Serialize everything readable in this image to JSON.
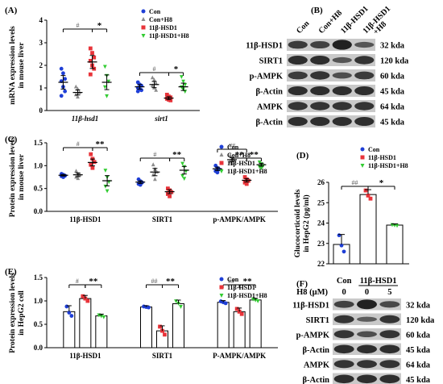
{
  "panel_letters": [
    "(A)",
    "(B)",
    "(C)",
    "(D)",
    "(E)",
    "(F)"
  ],
  "significance": {
    "hash": "#",
    "hash2": "##",
    "star": "*",
    "star2": "**"
  },
  "colors": {
    "con": "#1f3fd6",
    "conh8": "#8c8c8c",
    "hsd1": "#e8343a",
    "hsd1h8": "#33cc33",
    "band_dark": "#1a1a1a",
    "band_mid": "#555555"
  },
  "chart_data": [
    {
      "id": "A",
      "type": "scatter",
      "ylabel": "mRNA expression levels in mouse liver",
      "categories": [
        "11β-hsd1",
        "sirt1"
      ],
      "ylim": [
        0,
        4
      ],
      "yticks": [
        0,
        1,
        2,
        3,
        4
      ],
      "legend": "top-right",
      "series": [
        {
          "name": "Con",
          "color": "con",
          "marker": "circle",
          "means": [
            1.25,
            1.05
          ],
          "points": [
            [
              1.85,
              1.65,
              1.4,
              1.3,
              1.05,
              0.85,
              0.65
            ],
            [
              1.25,
              1.15,
              1.1,
              1.0,
              0.95,
              0.9,
              0.85
            ]
          ]
        },
        {
          "name": "Con+H8",
          "color": "conh8",
          "marker": "triangle",
          "means": [
            0.8,
            1.15
          ],
          "points": [
            [
              1.05,
              0.95,
              0.8,
              0.7,
              0.6
            ],
            [
              1.45,
              1.35,
              1.2,
              1.1,
              1.0,
              0.9
            ]
          ]
        },
        {
          "name": "11β-HSD1",
          "color": "hsd1",
          "marker": "square",
          "means": [
            2.15,
            0.55
          ],
          "points": [
            [
              2.75,
              2.55,
              2.35,
              2.2,
              2.0,
              1.85,
              1.6
            ],
            [
              0.7,
              0.62,
              0.58,
              0.52,
              0.48,
              0.45
            ]
          ]
        },
        {
          "name": "11β-HSD1+H8",
          "color": "hsd1h8",
          "marker": "triangle-down",
          "means": [
            1.25,
            1.05
          ],
          "points": [
            [
              1.95,
              1.55,
              1.3,
              1.05,
              0.65
            ],
            [
              1.5,
              1.3,
              1.15,
              1.05,
              0.95,
              0.85
            ]
          ]
        }
      ],
      "annotations": [
        {
          "group": 0,
          "label": "#",
          "from": 0,
          "to": 2
        },
        {
          "group": 0,
          "label": "*",
          "from": 2,
          "to": 3
        },
        {
          "group": 1,
          "label": "#",
          "from": 0,
          "to": 2
        },
        {
          "group": 1,
          "label": "*",
          "from": 2,
          "to": 3
        }
      ]
    },
    {
      "id": "C",
      "type": "scatter",
      "ylabel": "Protein expression levels in mouse liver",
      "categories": [
        "11β-HSD1",
        "SIRT1",
        "p-AMPK/AMPK"
      ],
      "ylim": [
        0,
        1.5
      ],
      "yticks": [
        0.0,
        0.5,
        1.0,
        1.5
      ],
      "legend": "top-right",
      "series": [
        {
          "name": "Con",
          "color": "con",
          "marker": "circle",
          "means": [
            0.79,
            0.64,
            0.93
          ],
          "points": [
            [
              0.82,
              0.8,
              0.78,
              0.77,
              0.75
            ],
            [
              0.7,
              0.66,
              0.63,
              0.6,
              0.58
            ],
            [
              1.0,
              0.95,
              0.92,
              0.88,
              0.85
            ]
          ]
        },
        {
          "name": "Con+H8",
          "color": "conh8",
          "marker": "triangle",
          "means": [
            0.8,
            0.86,
            1.13
          ],
          "points": [
            [
              0.88,
              0.82,
              0.8,
              0.75,
              0.72
            ],
            [
              1.02,
              0.92,
              0.86,
              0.8,
              0.7
            ],
            [
              1.22,
              1.15,
              1.12,
              1.08,
              1.05
            ]
          ]
        },
        {
          "name": "11β-HSD1",
          "color": "hsd1",
          "marker": "square",
          "means": [
            1.07,
            0.43,
            0.68
          ],
          "points": [
            [
              1.25,
              1.15,
              1.08,
              1.02,
              0.95
            ],
            [
              0.5,
              0.46,
              0.42,
              0.38,
              0.33
            ],
            [
              0.75,
              0.7,
              0.67,
              0.63,
              0.6
            ]
          ]
        },
        {
          "name": "11β-HSD1+H8",
          "color": "hsd1h8",
          "marker": "triangle-down",
          "means": [
            0.67,
            0.9,
            1.02
          ],
          "points": [
            [
              0.9,
              0.75,
              0.65,
              0.55,
              0.45
            ],
            [
              1.05,
              0.98,
              0.88,
              0.78,
              0.72
            ],
            [
              1.08,
              1.04,
              1.0,
              0.98,
              0.95
            ]
          ]
        }
      ],
      "annotations": [
        {
          "group": 0,
          "label": "#",
          "from": 0,
          "to": 2
        },
        {
          "group": 0,
          "label": "**",
          "from": 2,
          "to": 3
        },
        {
          "group": 1,
          "label": "#",
          "from": 0,
          "to": 2
        },
        {
          "group": 1,
          "label": "**",
          "from": 2,
          "to": 3
        },
        {
          "group": 2,
          "label": "##",
          "from": 0,
          "to": 2
        },
        {
          "group": 2,
          "label": "**",
          "from": 1,
          "to": 2
        },
        {
          "group": 2,
          "label": "**",
          "from": 2,
          "to": 3
        }
      ]
    },
    {
      "id": "D",
      "type": "bar",
      "ylabel": "Glucocorticoid levels in HepG2 (pg/ml)",
      "categories": [
        "Con",
        "11β-HSD1",
        "11β-HSD1+H8"
      ],
      "ylim": [
        22,
        26
      ],
      "yticks": [
        22,
        23,
        24,
        25,
        26
      ],
      "values": [
        22.95,
        25.4,
        23.9
      ],
      "points": [
        [
          23.4,
          22.9,
          22.6
        ],
        [
          25.6,
          25.35,
          25.2
        ],
        [
          23.92,
          23.9,
          23.88
        ]
      ],
      "legend": "top-right",
      "annotations": [
        {
          "label": "##",
          "from": 0,
          "to": 1
        },
        {
          "label": "*",
          "from": 1,
          "to": 2
        }
      ]
    },
    {
      "id": "E",
      "type": "bar",
      "ylabel": "Protein expression levels in HepG2 cell",
      "categories": [
        "11β-HSD1",
        "SIRT1",
        "P-AMPK/AMPK"
      ],
      "ylim": [
        0,
        1.5
      ],
      "yticks": [
        0.0,
        0.5,
        1.0,
        1.5
      ],
      "legend": "top-right",
      "series": [
        {
          "name": "Con",
          "color": "con",
          "marker": "circle",
          "values": [
            0.77,
            0.87,
            0.97
          ],
          "points": [
            [
              0.88,
              0.75,
              0.68
            ],
            [
              0.88,
              0.87,
              0.86
            ],
            [
              0.99,
              0.97,
              0.95
            ]
          ]
        },
        {
          "name": "11β-HSD1",
          "color": "hsd1",
          "marker": "square",
          "values": [
            1.05,
            0.36,
            0.77
          ],
          "points": [
            [
              1.1,
              1.05,
              1.0
            ],
            [
              0.45,
              0.36,
              0.28
            ],
            [
              0.83,
              0.77,
              0.72
            ]
          ]
        },
        {
          "name": "11β-HSD1+H8",
          "color": "hsd1h8",
          "marker": "triangle-down",
          "values": [
            0.68,
            0.94,
            1.02
          ],
          "points": [
            [
              0.7,
              0.68,
              0.66
            ],
            [
              1.0,
              0.95,
              0.88
            ],
            [
              1.04,
              1.02,
              1.0
            ]
          ]
        }
      ],
      "annotations": [
        {
          "group": 0,
          "label": "#",
          "from": 0,
          "to": 1
        },
        {
          "group": 0,
          "label": "**",
          "from": 1,
          "to": 2
        },
        {
          "group": 1,
          "label": "##",
          "from": 0,
          "to": 1
        },
        {
          "group": 1,
          "label": "**",
          "from": 1,
          "to": 2
        },
        {
          "group": 2,
          "label": "##",
          "from": 0,
          "to": 1
        },
        {
          "group": 2,
          "label": "**",
          "from": 1,
          "to": 2
        }
      ]
    }
  ],
  "blots": {
    "B": {
      "lanes": [
        "Con",
        "Con+H8",
        "11β-HSD1",
        "11β-HSD1 +H8"
      ],
      "rows": [
        {
          "label": "11β-HSD1",
          "kda": "32 kda",
          "intensity": [
            0.75,
            0.7,
            0.95,
            0.55
          ]
        },
        {
          "label": "SIRT1",
          "kda": "120 kda",
          "intensity": [
            0.85,
            0.85,
            0.55,
            0.8
          ]
        },
        {
          "label": "p-AMPK",
          "kda": "60 kda",
          "intensity": [
            0.75,
            0.8,
            0.6,
            0.75
          ]
        },
        {
          "label": "β-Actin",
          "kda": "45 kda",
          "intensity": [
            0.85,
            0.85,
            0.85,
            0.85
          ]
        },
        {
          "label": "AMPK",
          "kda": "64 kda",
          "intensity": [
            0.8,
            0.8,
            0.8,
            0.8
          ]
        },
        {
          "label": "β-Actin",
          "kda": "45 kda",
          "intensity": [
            0.85,
            0.85,
            0.85,
            0.85
          ]
        }
      ]
    },
    "F": {
      "header_con": "Con",
      "header_hsd1": "11β-HSD1",
      "h8_label": "H8 (μM)",
      "doses": [
        "0",
        "0",
        "5"
      ],
      "rows": [
        {
          "label": "11β-HSD1",
          "kda": "32 kda",
          "intensity": [
            0.7,
            0.95,
            0.65
          ]
        },
        {
          "label": "SIRT1",
          "kda": "120 kda",
          "intensity": [
            0.8,
            0.5,
            0.8
          ]
        },
        {
          "label": "p-AMPK",
          "kda": "60 kda",
          "intensity": [
            0.8,
            0.6,
            0.8
          ]
        },
        {
          "label": "β-Actin",
          "kda": "45 kda",
          "intensity": [
            0.85,
            0.85,
            0.85
          ]
        },
        {
          "label": "AMPK",
          "kda": "64 kda",
          "intensity": [
            0.8,
            0.8,
            0.8
          ]
        },
        {
          "label": "β-Actin",
          "kda": "45 kda",
          "intensity": [
            0.85,
            0.85,
            0.85
          ]
        }
      ]
    }
  }
}
